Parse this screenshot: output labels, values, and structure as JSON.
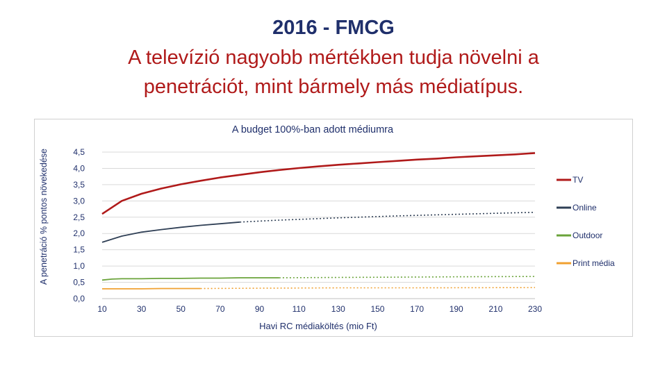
{
  "slide": {
    "title": "2016 - FMCG",
    "subtitle_line1": "A televízió nagyobb mértékben tudja növelni a",
    "subtitle_line2": "penetrációt, mint bármely más médiatípus."
  },
  "colors": {
    "title": "#1f2f6b",
    "subtitle": "#b01a1a",
    "tv": "#b01a1a",
    "online": "#2f3f55",
    "outdoor": "#6aa33a",
    "print": "#f0a030"
  },
  "chart_data": {
    "type": "line",
    "title": "A budget 100%-ban adott médiumra",
    "xlabel": "Havi RC médiaköltés (mio Ft)",
    "ylabel": "A penetráció % pontos növekedése",
    "ylim": [
      0,
      4.5
    ],
    "xlim": [
      10,
      230
    ],
    "y_ticks": [
      "0,0",
      "0,5",
      "1,0",
      "1,5",
      "2,0",
      "2,5",
      "3,0",
      "3,5",
      "4,0",
      "4,5"
    ],
    "x_ticks": [
      "10",
      "30",
      "50",
      "70",
      "90",
      "110",
      "130",
      "150",
      "170",
      "190",
      "210",
      "230"
    ],
    "grid": "horizontal",
    "legend_position": "right",
    "series": [
      {
        "name": "TV",
        "color": "#b01a1a",
        "x": [
          10,
          20,
          30,
          40,
          50,
          60,
          70,
          80,
          90,
          100,
          110,
          120,
          130,
          140,
          150,
          160,
          170,
          180,
          190,
          200,
          210,
          220,
          230
        ],
        "values": [
          2.6,
          3.0,
          3.22,
          3.38,
          3.51,
          3.62,
          3.72,
          3.8,
          3.88,
          3.95,
          4.01,
          4.06,
          4.11,
          4.15,
          4.19,
          4.23,
          4.27,
          4.3,
          4.34,
          4.37,
          4.4,
          4.43,
          4.47
        ],
        "dashed_from_x": null
      },
      {
        "name": "Online",
        "color": "#2f3f55",
        "x": [
          10,
          20,
          30,
          40,
          50,
          60,
          70,
          80,
          100,
          130,
          160,
          190,
          230
        ],
        "values": [
          1.73,
          1.92,
          2.04,
          2.12,
          2.19,
          2.25,
          2.3,
          2.35,
          2.41,
          2.48,
          2.54,
          2.59,
          2.65
        ],
        "dashed_from_x": 80
      },
      {
        "name": "Outdoor",
        "color": "#6aa33a",
        "x": [
          10,
          15,
          20,
          30,
          40,
          50,
          60,
          70,
          80,
          90,
          100,
          130,
          160,
          190,
          230
        ],
        "values": [
          0.57,
          0.6,
          0.61,
          0.61,
          0.62,
          0.62,
          0.63,
          0.63,
          0.64,
          0.64,
          0.64,
          0.65,
          0.66,
          0.67,
          0.68
        ],
        "dashed_from_x": 100
      },
      {
        "name": "Print média",
        "color": "#f0a030",
        "x": [
          10,
          20,
          30,
          40,
          50,
          60,
          90,
          130,
          170,
          230
        ],
        "values": [
          0.3,
          0.3,
          0.3,
          0.31,
          0.31,
          0.31,
          0.32,
          0.33,
          0.33,
          0.34
        ],
        "dashed_from_x": 60
      }
    ]
  }
}
